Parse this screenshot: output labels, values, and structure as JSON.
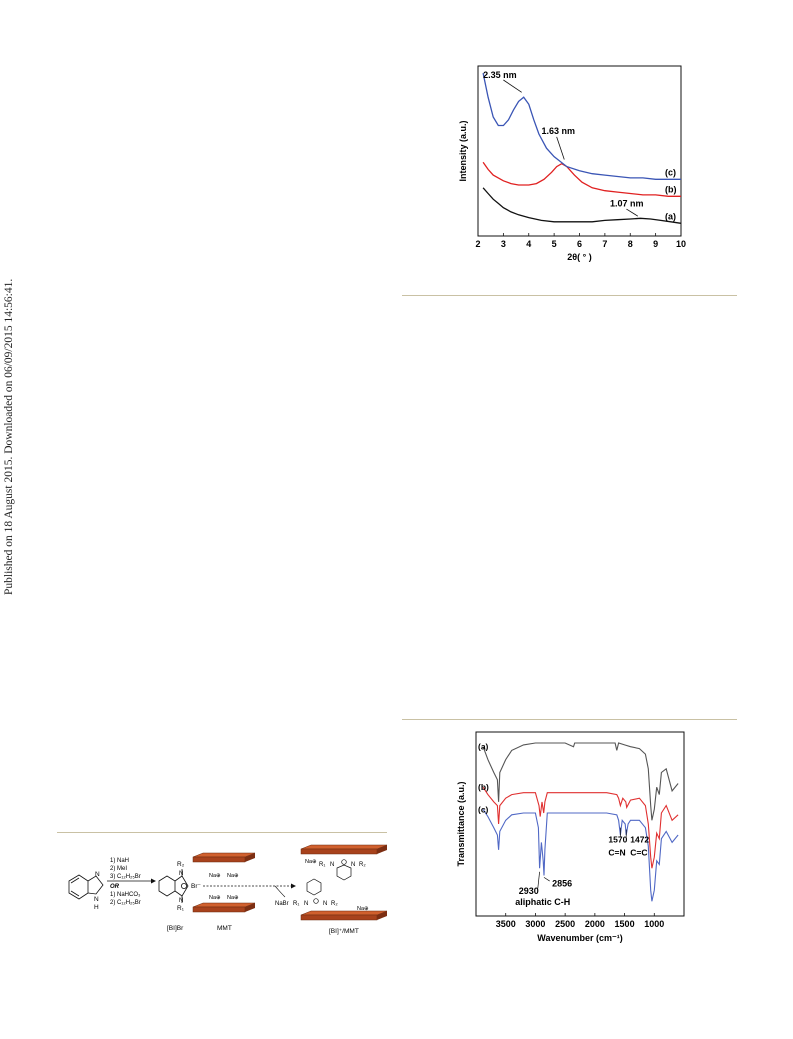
{
  "side_note": "Published on 18 August 2015. Downloaded on 06/09/2015 14:56:41.",
  "chart_data": [
    {
      "type": "line",
      "xlabel": "2θ( ° )",
      "ylabel": "Intensity (a.u.)",
      "xlim": [
        2,
        10
      ],
      "xticks": [
        2,
        3,
        4,
        5,
        6,
        7,
        8,
        9,
        10
      ],
      "series": [
        {
          "name": "(a)",
          "color": "#111111",
          "x": [
            2.2,
            2.4,
            2.6,
            2.8,
            3.0,
            3.3,
            3.6,
            4.0,
            4.5,
            5.0,
            5.5,
            6.0,
            6.5,
            7.0,
            7.5,
            8.0,
            8.4,
            8.8,
            9.2,
            9.6,
            10.0
          ],
          "y": [
            0.34,
            0.3,
            0.26,
            0.23,
            0.2,
            0.17,
            0.15,
            0.13,
            0.11,
            0.1,
            0.1,
            0.1,
            0.1,
            0.11,
            0.115,
            0.12,
            0.125,
            0.12,
            0.11,
            0.1,
            0.09
          ]
        },
        {
          "name": "(b)",
          "color": "#e02020",
          "x": [
            2.2,
            2.4,
            2.6,
            2.8,
            3.0,
            3.3,
            3.6,
            4.0,
            4.3,
            4.6,
            4.9,
            5.1,
            5.3,
            5.5,
            5.8,
            6.1,
            6.5,
            7.0,
            7.5,
            8.0,
            8.5,
            9.0,
            9.5,
            10.0
          ],
          "y": [
            0.52,
            0.47,
            0.43,
            0.41,
            0.39,
            0.37,
            0.36,
            0.36,
            0.37,
            0.4,
            0.45,
            0.49,
            0.51,
            0.49,
            0.43,
            0.38,
            0.34,
            0.32,
            0.31,
            0.3,
            0.29,
            0.29,
            0.28,
            0.28
          ]
        },
        {
          "name": "(c)",
          "color": "#3a55b5",
          "x": [
            2.2,
            2.4,
            2.6,
            2.8,
            3.0,
            3.2,
            3.4,
            3.6,
            3.8,
            4.0,
            4.2,
            4.4,
            4.7,
            5.0,
            5.5,
            6.0,
            6.5,
            7.0,
            7.5,
            8.0,
            8.5,
            9.0,
            9.5,
            10.0
          ],
          "y": [
            1.15,
            0.98,
            0.84,
            0.78,
            0.78,
            0.82,
            0.89,
            0.95,
            0.98,
            0.93,
            0.82,
            0.72,
            0.62,
            0.56,
            0.49,
            0.46,
            0.44,
            0.43,
            0.42,
            0.41,
            0.41,
            0.4,
            0.4,
            0.4
          ]
        }
      ],
      "annotations": [
        {
          "text": "2.35 nm",
          "x": 3.8
        },
        {
          "text": "1.63 nm",
          "x": 5.4
        },
        {
          "text": "1.07 nm",
          "x": 8.3
        }
      ]
    },
    {
      "type": "line",
      "xlabel": "Wavenumber (cm⁻¹)",
      "ylabel": "Transmittance (a.u.)",
      "xlim": [
        4000,
        500
      ],
      "xticks": [
        3500,
        3000,
        2500,
        2000,
        1500,
        1000
      ],
      "series": [
        {
          "name": "(a)",
          "color": "#555555",
          "x": [
            3880,
            3800,
            3700,
            3640,
            3620,
            3600,
            3500,
            3400,
            3200,
            3000,
            2800,
            2500,
            2360,
            2340,
            2200,
            2000,
            1800,
            1660,
            1630,
            1600,
            1500,
            1400,
            1250,
            1150,
            1100,
            1060,
            1040,
            1000,
            960,
            915,
            880,
            800,
            700,
            600
          ],
          "y": [
            0.92,
            0.85,
            0.78,
            0.74,
            0.62,
            0.78,
            0.85,
            0.9,
            0.93,
            0.94,
            0.94,
            0.94,
            0.92,
            0.94,
            0.94,
            0.94,
            0.94,
            0.94,
            0.9,
            0.94,
            0.93,
            0.92,
            0.91,
            0.88,
            0.8,
            0.6,
            0.52,
            0.58,
            0.7,
            0.66,
            0.78,
            0.8,
            0.68,
            0.72
          ]
        },
        {
          "name": "(b)",
          "color": "#e03030",
          "x": [
            3880,
            3800,
            3700,
            3640,
            3620,
            3600,
            3500,
            3400,
            3200,
            3000,
            2940,
            2920,
            2890,
            2860,
            2840,
            2800,
            2500,
            2000,
            1800,
            1630,
            1600,
            1570,
            1530,
            1480,
            1465,
            1400,
            1250,
            1150,
            1100,
            1060,
            1040,
            1000,
            960,
            915,
            880,
            800,
            700,
            600
          ],
          "y": [
            0.7,
            0.66,
            0.62,
            0.6,
            0.5,
            0.6,
            0.64,
            0.66,
            0.67,
            0.67,
            0.6,
            0.54,
            0.62,
            0.56,
            0.62,
            0.67,
            0.67,
            0.67,
            0.67,
            0.66,
            0.64,
            0.6,
            0.64,
            0.62,
            0.59,
            0.63,
            0.64,
            0.6,
            0.5,
            0.32,
            0.26,
            0.32,
            0.45,
            0.42,
            0.56,
            0.6,
            0.52,
            0.55
          ]
        },
        {
          "name": "(c)",
          "color": "#5068c5",
          "x": [
            3880,
            3800,
            3700,
            3640,
            3620,
            3600,
            3500,
            3400,
            3200,
            3000,
            2950,
            2930,
            2900,
            2870,
            2856,
            2840,
            2800,
            2500,
            2000,
            1800,
            1630,
            1600,
            1570,
            1540,
            1490,
            1472,
            1440,
            1400,
            1250,
            1150,
            1100,
            1060,
            1040,
            1000,
            960,
            915,
            880,
            800,
            700,
            600
          ],
          "y": [
            0.58,
            0.54,
            0.48,
            0.44,
            0.36,
            0.46,
            0.52,
            0.55,
            0.56,
            0.56,
            0.48,
            0.26,
            0.4,
            0.3,
            0.22,
            0.36,
            0.56,
            0.56,
            0.56,
            0.56,
            0.55,
            0.52,
            0.44,
            0.52,
            0.5,
            0.44,
            0.5,
            0.52,
            0.52,
            0.48,
            0.38,
            0.14,
            0.08,
            0.14,
            0.3,
            0.28,
            0.42,
            0.46,
            0.4,
            0.44
          ]
        }
      ],
      "annotations": [
        {
          "lines": [
            "1570",
            "C=N"
          ],
          "x": 1570
        },
        {
          "lines": [
            "1472",
            "C=C"
          ],
          "x": 1472
        },
        {
          "lines": [
            "2930",
            "aliphatic C-H"
          ],
          "x": 2930
        },
        {
          "text": "2856",
          "x": 2856
        }
      ]
    }
  ],
  "scheme": {
    "step_a": [
      "1) NaH",
      "2) MeI",
      "3) C₁₂H₂₅Br"
    ],
    "or_label": "OR",
    "step_b": [
      "1) NaHCO₃",
      "2) C₁₂H₂₅Br"
    ],
    "atom_n": "N",
    "atom_h": "H",
    "r1": "R₁",
    "r2": "R₂",
    "bromide": "Br⁻",
    "sodium_ion": "Na⊕",
    "nabr": "NaBr",
    "label_bibr": "[BI]Br",
    "label_mmt": "MMT",
    "label_product": "[BI]⁺/MMT"
  }
}
